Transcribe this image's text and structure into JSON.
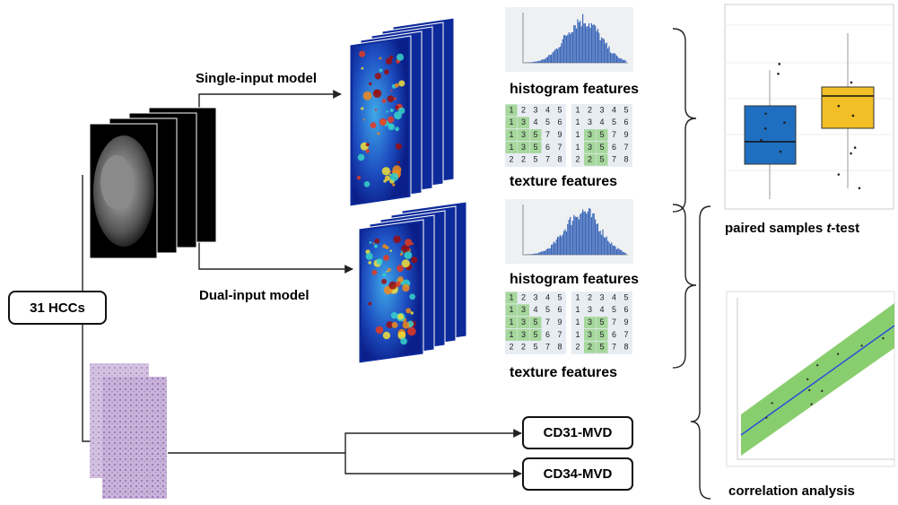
{
  "source": "31 HCCs",
  "models": [
    "Single-input model",
    "Dual-input model"
  ],
  "panels": [
    {
      "histogram_label": "histogram features",
      "texture_label": "texture features",
      "matrices": {
        "left": [
          [
            1,
            2,
            3,
            4,
            5
          ],
          [
            1,
            3,
            4,
            5,
            6
          ],
          [
            1,
            3,
            5,
            7,
            9
          ],
          [
            1,
            3,
            5,
            6,
            7
          ],
          [
            2,
            2,
            5,
            7,
            8
          ]
        ],
        "right": [
          [
            1,
            2,
            3,
            4,
            5
          ],
          [
            1,
            3,
            4,
            5,
            6
          ],
          [
            1,
            3,
            5,
            7,
            9
          ],
          [
            1,
            3,
            5,
            6,
            7
          ],
          [
            2,
            2,
            5,
            7,
            8
          ]
        ]
      }
    },
    {
      "histogram_label": "histogram features",
      "texture_label": "texture features",
      "matrices": {
        "left": [
          [
            1,
            2,
            3,
            4,
            5
          ],
          [
            1,
            3,
            4,
            5,
            6
          ],
          [
            1,
            3,
            5,
            7,
            9
          ],
          [
            1,
            3,
            5,
            6,
            7
          ],
          [
            2,
            2,
            5,
            7,
            8
          ]
        ],
        "right": [
          [
            1,
            2,
            3,
            4,
            5
          ],
          [
            1,
            3,
            4,
            5,
            6
          ],
          [
            1,
            3,
            5,
            7,
            9
          ],
          [
            1,
            3,
            5,
            6,
            7
          ],
          [
            2,
            2,
            5,
            7,
            8
          ]
        ]
      }
    }
  ],
  "analyses": {
    "ttest": [
      "paired samples ",
      "t",
      "-test"
    ],
    "correlation": "correlation analysis"
  },
  "markers": [
    "CD31-MVD",
    "CD34-MVD"
  ]
}
